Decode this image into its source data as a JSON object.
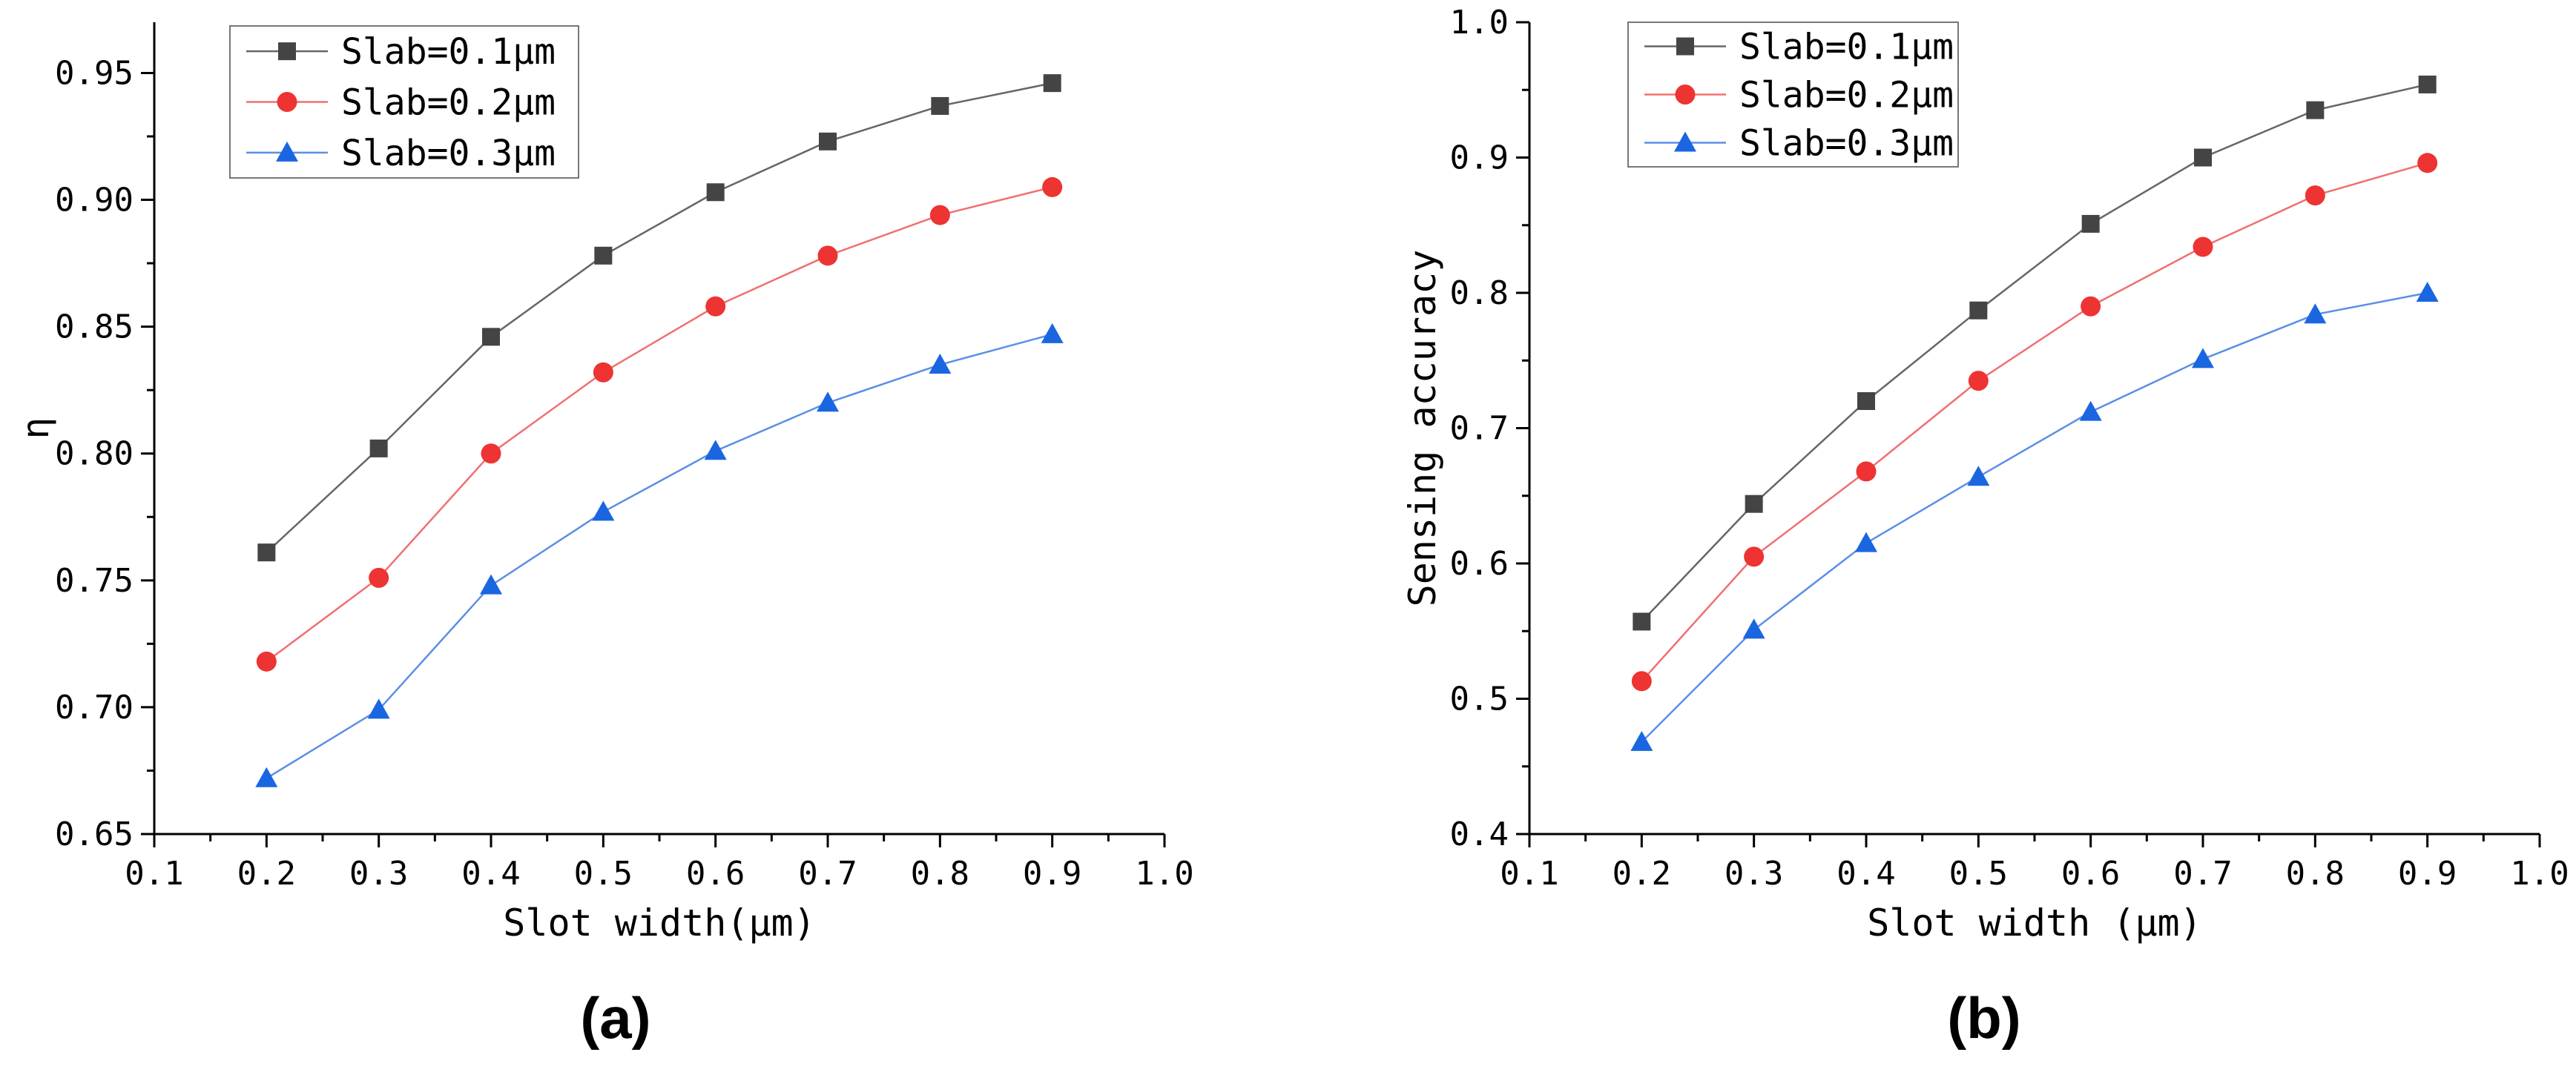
{
  "chart_data": [
    {
      "type": "line",
      "panel_label": "(a)",
      "xlabel": "Slot width(μm)",
      "ylabel": "η",
      "xlim": [
        0.1,
        1.0
      ],
      "ylim": [
        0.65,
        0.97
      ],
      "xticks": [
        "0.1",
        "0.2",
        "0.3",
        "0.4",
        "0.5",
        "0.6",
        "0.7",
        "0.8",
        "0.9",
        "1.0"
      ],
      "yticks": [
        "0.65",
        "0.70",
        "0.75",
        "0.80",
        "0.85",
        "0.90",
        "0.95"
      ],
      "legend_position": "top-left",
      "x": [
        0.2,
        0.3,
        0.4,
        0.5,
        0.6,
        0.7,
        0.8,
        0.9
      ],
      "series": [
        {
          "name": "Slab=0.1μm",
          "marker": "square",
          "color": "#444444",
          "line_color": "#666666",
          "values": [
            0.761,
            0.802,
            0.846,
            0.878,
            0.903,
            0.923,
            0.937,
            0.946
          ]
        },
        {
          "name": "Slab=0.2μm",
          "marker": "circle",
          "color": "#ee3333",
          "line_color": "#f07070",
          "values": [
            0.718,
            0.751,
            0.8,
            0.832,
            0.858,
            0.878,
            0.894,
            0.905
          ]
        },
        {
          "name": "Slab=0.3μm",
          "marker": "triangle",
          "color": "#1a66e0",
          "line_color": "#5b8fe6",
          "values": [
            0.672,
            0.699,
            0.748,
            0.777,
            0.801,
            0.82,
            0.835,
            0.847
          ]
        }
      ]
    },
    {
      "type": "line",
      "panel_label": "(b)",
      "xlabel": "Slot width (μm)",
      "ylabel": "Sensing accuracy",
      "xlim": [
        0.1,
        1.0
      ],
      "ylim": [
        0.4,
        1.0
      ],
      "xticks": [
        "0.1",
        "0.2",
        "0.3",
        "0.4",
        "0.5",
        "0.6",
        "0.7",
        "0.8",
        "0.9",
        "1.0"
      ],
      "yticks": [
        "0.4",
        "0.5",
        "0.6",
        "0.7",
        "0.8",
        "0.9",
        "1.0"
      ],
      "legend_position": "top-left",
      "x": [
        0.2,
        0.3,
        0.4,
        0.5,
        0.6,
        0.7,
        0.8,
        0.9
      ],
      "series": [
        {
          "name": "Slab=0.1μm",
          "marker": "square",
          "color": "#444444",
          "line_color": "#666666",
          "values": [
            0.557,
            0.644,
            0.72,
            0.787,
            0.851,
            0.9,
            0.935,
            0.954
          ]
        },
        {
          "name": "Slab=0.2μm",
          "marker": "circle",
          "color": "#ee3333",
          "line_color": "#f07070",
          "values": [
            0.513,
            0.605,
            0.668,
            0.735,
            0.79,
            0.834,
            0.872,
            0.896
          ]
        },
        {
          "name": "Slab=0.3μm",
          "marker": "triangle",
          "color": "#1a66e0",
          "line_color": "#5b8fe6",
          "values": [
            0.468,
            0.551,
            0.615,
            0.664,
            0.712,
            0.751,
            0.784,
            0.8
          ]
        }
      ]
    }
  ]
}
